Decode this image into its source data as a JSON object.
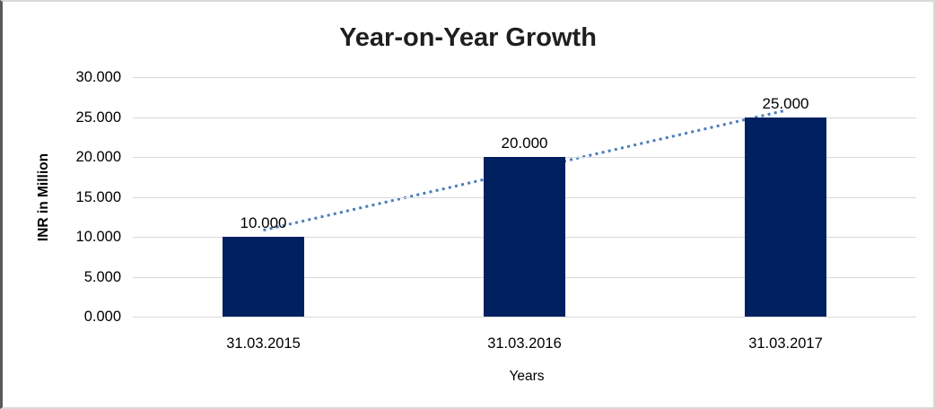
{
  "chart_data": {
    "type": "bar",
    "title": "Year-on-Year Growth",
    "xlabel": "Years",
    "ylabel": "INR in Million",
    "categories": [
      "31.03.2015",
      "31.03.2016",
      "31.03.2017"
    ],
    "values": [
      10,
      20,
      25
    ],
    "data_labels": [
      "10.000",
      "20.000",
      "25.000"
    ],
    "ylim": [
      0,
      30
    ],
    "ytick_step": 5,
    "ytick_labels_top_to_bottom": [
      "30.000",
      "25.000",
      "20.000",
      "15.000",
      "10.000",
      "5.000",
      "0.000"
    ],
    "grid": "horizontal",
    "legend": "none",
    "bar_color": "#002060",
    "gridline_color": "#d9d9d9",
    "trendline": {
      "type": "linear",
      "style": "dotted",
      "color": "#4a7ebb",
      "endpoint_values": [
        10.83,
        25.83
      ],
      "spans_categories": [
        0,
        2
      ]
    }
  }
}
